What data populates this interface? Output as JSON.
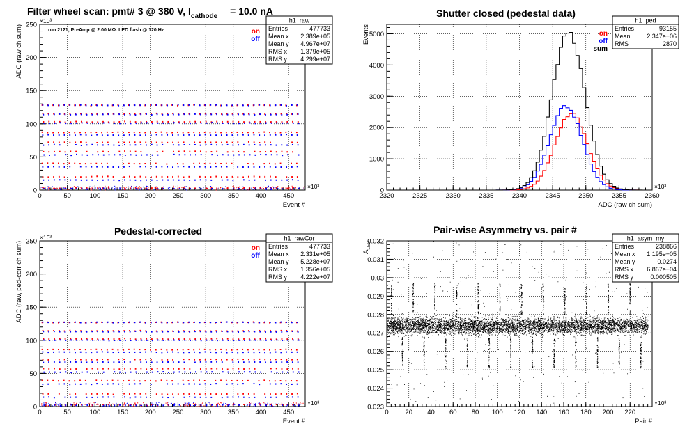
{
  "colors": {
    "on": "#ff0000",
    "off": "#0000ff",
    "sum": "#000000",
    "axis": "#000000",
    "grid": "#000000"
  },
  "chart_data": [
    {
      "id": "raw",
      "type": "scatter",
      "title": "Filter wheel scan: pmt#   3 @   380 V, I",
      "title_sub": "cathode",
      "title_tail": "= 10.0 nA",
      "xlabel": "Event #",
      "ylabel": "ADC (raw ch sum)",
      "xlim": [
        0,
        480
      ],
      "ylim": [
        0,
        250
      ],
      "x_ticks": [
        "0",
        "50",
        "100",
        "150",
        "200",
        "250",
        "300",
        "350",
        "400",
        "450"
      ],
      "y_ticks": [
        "0",
        "50",
        "100",
        "150",
        "200",
        "250"
      ],
      "x_exp": "×10³",
      "y_exp": "×10³",
      "annotation": "run 2121, PreAmp @ 2.00 MΩ.  LED flash @  120.Hz",
      "legend": [
        "on",
        "off"
      ],
      "levels_on": [
        128,
        115,
        103,
        87,
        72,
        58,
        40,
        20,
        3
      ],
      "levels_off": [
        128,
        114,
        101,
        83,
        68,
        53,
        35,
        15,
        2
      ],
      "stats": {
        "name": "h1_raw",
        "rows": [
          [
            "Entries",
            "477733"
          ],
          [
            "Mean x",
            "2.389e+05"
          ],
          [
            "Mean y",
            "4.967e+07"
          ],
          [
            "RMS x",
            "1.379e+05"
          ],
          [
            "RMS y",
            "4.299e+07"
          ]
        ]
      }
    },
    {
      "id": "ped",
      "type": "line",
      "title": "Shutter closed (pedestal data)",
      "xlabel": "ADC (raw ch sum)",
      "ylabel": "Events",
      "xlim": [
        2320,
        2360
      ],
      "ylim": [
        0,
        5300
      ],
      "x_ticks": [
        "2320",
        "2325",
        "2330",
        "2335",
        "2340",
        "2345",
        "2350",
        "2355",
        "2360"
      ],
      "y_ticks": [
        "0",
        "1000",
        "2000",
        "3000",
        "4000",
        "5000"
      ],
      "x_exp": "×10³",
      "legend": [
        "on",
        "off",
        "sum"
      ],
      "series": [
        {
          "name": "on",
          "mean": 2347.8,
          "sigma": 2.45,
          "peak": 2450
        },
        {
          "name": "off",
          "mean": 2347.0,
          "sigma": 2.45,
          "peak": 2700
        },
        {
          "name": "sum",
          "mean": 2347.4,
          "sigma": 2.5,
          "peak": 5070
        }
      ],
      "stats": {
        "name": "h1_ped",
        "rows": [
          [
            "Entries",
            "93155"
          ],
          [
            "Mean",
            "2.347e+06"
          ],
          [
            "RMS",
            "2870"
          ]
        ]
      }
    },
    {
      "id": "rawCor",
      "type": "scatter",
      "title": "Pedestal-corrected",
      "xlabel": "Event #",
      "ylabel": "ADC (raw, ped-corr ch sum)",
      "xlim": [
        0,
        480
      ],
      "ylim": [
        0,
        250
      ],
      "x_ticks": [
        "0",
        "50",
        "100",
        "150",
        "200",
        "250",
        "300",
        "350",
        "400",
        "450"
      ],
      "y_ticks": [
        "0",
        "50",
        "100",
        "150",
        "200",
        "250"
      ],
      "x_exp": "×10³",
      "y_exp": "×10³",
      "legend": [
        "on",
        "off"
      ],
      "levels_on": [
        127,
        114,
        102,
        86,
        71,
        57,
        39,
        19,
        3
      ],
      "levels_off": [
        127,
        113,
        100,
        82,
        67,
        52,
        34,
        14,
        2
      ],
      "stats": {
        "name": "h1_rawCor",
        "rows": [
          [
            "Entries",
            "477733"
          ],
          [
            "Mean x",
            "2.331e+05"
          ],
          [
            "Mean y",
            "5.228e+07"
          ],
          [
            "RMS x",
            "1.356e+05"
          ],
          [
            "RMS y",
            "4.222e+07"
          ]
        ]
      }
    },
    {
      "id": "asym",
      "type": "scatter",
      "title": "Pair-wise Asymmetry vs. pair #",
      "xlabel": "Pair #",
      "ylabel": "A",
      "ylabel_sub": "LED",
      "xlim": [
        0,
        240
      ],
      "ylim": [
        0.023,
        0.032
      ],
      "x_ticks": [
        "0",
        "20",
        "40",
        "60",
        "80",
        "100",
        "120",
        "140",
        "160",
        "180",
        "200",
        "220"
      ],
      "y_ticks": [
        "0.023",
        "0.024",
        "0.025",
        "0.026",
        "0.027",
        "0.028",
        "0.029",
        "0.03",
        "0.031",
        "0.032"
      ],
      "x_exp": "×10³",
      "band_center": 0.0274,
      "band_half_width": 0.0006,
      "stats": {
        "name": "h1_asym_my",
        "rows": [
          [
            "Entries",
            "238866"
          ],
          [
            "Mean x",
            "1.195e+05"
          ],
          [
            "Mean y",
            "0.0274"
          ],
          [
            "RMS x",
            "6.867e+04"
          ],
          [
            "RMS y",
            "0.000505"
          ]
        ]
      }
    }
  ]
}
